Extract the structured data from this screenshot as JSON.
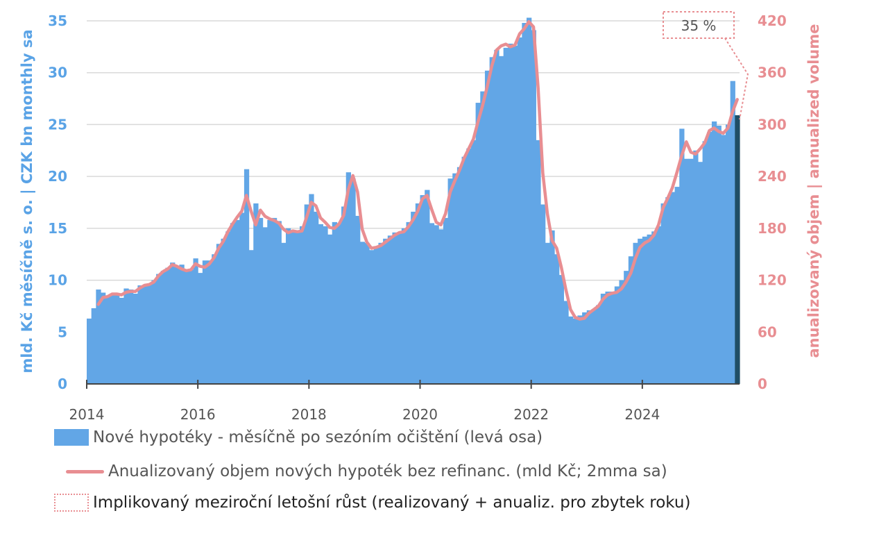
{
  "chart_data": {
    "type": "bar+line",
    "title": "",
    "ylabel_left": "mld. Kč měsíčně s. o. | CZK bn monthly sa",
    "ylabel_right": "anualizovaný objem | annualized volume",
    "ylim_left": [
      0,
      35
    ],
    "ylim_right": [
      0,
      420
    ],
    "yticks_left": [
      "0",
      "5",
      "10",
      "15",
      "20",
      "25",
      "30",
      "35"
    ],
    "yticks_right": [
      "0",
      "60",
      "120",
      "180",
      "240",
      "300",
      "360",
      "420"
    ],
    "xticks": [
      "2014",
      "2016",
      "2018",
      "2020",
      "2022",
      "2024"
    ],
    "grid": true,
    "legend_position": "bottom",
    "colors": {
      "bars": "#62a6e6",
      "last_bar": "#1f4e66",
      "line": "#e88e92",
      "annotation": "#e88e92"
    },
    "bar_series": {
      "name": "Nové hypotéky - měsíčně po sezóním očištění (levá osa)",
      "axis": "left",
      "start": "2014-01",
      "frequency": "monthly",
      "values": [
        6.3,
        7.3,
        9.1,
        8.8,
        8.4,
        8.7,
        8.7,
        8.3,
        9.2,
        9.1,
        8.7,
        9.5,
        9.4,
        9.6,
        10.0,
        10.6,
        10.9,
        11.2,
        11.7,
        11.4,
        11.5,
        11.0,
        11.0,
        12.1,
        10.7,
        11.9,
        11.9,
        12.5,
        13.5,
        14.0,
        14.7,
        15.5,
        15.8,
        16.5,
        20.7,
        12.9,
        17.4,
        16.0,
        15.1,
        15.8,
        16.0,
        15.7,
        13.6,
        15.0,
        14.8,
        14.8,
        15.2,
        17.3,
        18.3,
        16.6,
        15.4,
        15.2,
        14.4,
        15.6,
        15.5,
        17.1,
        20.4,
        19.8,
        16.2,
        13.7,
        13.6,
        12.9,
        13.1,
        13.6,
        14.0,
        14.3,
        14.6,
        14.5,
        15.0,
        15.6,
        16.6,
        17.4,
        18.2,
        18.7,
        15.5,
        15.3,
        14.9,
        16.0,
        19.8,
        20.3,
        20.9,
        21.9,
        22.7,
        23.5,
        27.1,
        28.2,
        30.2,
        31.5,
        32.2,
        31.6,
        32.4,
        32.8,
        32.6,
        33.4,
        34.8,
        35.3,
        34.1,
        23.5,
        17.3,
        13.6,
        14.8,
        12.5,
        10.5,
        8.0,
        6.5,
        6.3,
        6.6,
        6.9,
        7.1,
        7.2,
        7.6,
        8.7,
        8.9,
        8.9,
        9.4,
        10.0,
        10.9,
        12.3,
        13.6,
        14.0,
        14.2,
        14.4,
        14.7,
        15.2,
        17.4,
        18.0,
        18.5,
        19.0,
        24.6,
        21.7,
        21.7,
        22.5,
        21.4,
        23.4,
        24.3,
        25.3,
        24.9,
        24.0,
        25.0,
        29.2,
        25.9
      ]
    },
    "line_series": {
      "name": "Anualizovaný objem nových hypoték bez refinanc. (mld Kč; 2mma sa)",
      "axis": "right",
      "start": "2014-01",
      "frequency": "monthly",
      "values": [
        null,
        null,
        92,
        100,
        101,
        104,
        104,
        103,
        106,
        107,
        107,
        111,
        114,
        115,
        118,
        125,
        130,
        133,
        138,
        136,
        133,
        131,
        132,
        139,
        136,
        135,
        139,
        146,
        157,
        165,
        176,
        185,
        193,
        200,
        218,
        200,
        184,
        201,
        194,
        191,
        189,
        186,
        179,
        175,
        177,
        176,
        177,
        193,
        210,
        206,
        192,
        187,
        181,
        180,
        185,
        195,
        225,
        241,
        222,
        179,
        164,
        157,
        158,
        160,
        164,
        168,
        172,
        175,
        176,
        182,
        190,
        200,
        214,
        218,
        202,
        187,
        184,
        197,
        222,
        235,
        247,
        261,
        272,
        283,
        303,
        322,
        344,
        368,
        386,
        391,
        393,
        390,
        392,
        405,
        411,
        419,
        413,
        342,
        244,
        197,
        166,
        157,
        135,
        109,
        86,
        77,
        75,
        76,
        82,
        86,
        90,
        98,
        103,
        105,
        106,
        110,
        118,
        128,
        145,
        158,
        163,
        166,
        172,
        184,
        204,
        215,
        227,
        245,
        264,
        280,
        268,
        266,
        272,
        279,
        293,
        296,
        292,
        290,
        296,
        315,
        329
      ]
    },
    "annotation": {
      "label": "35 %",
      "legend": "Implikovaný meziroční letošní růst (realizovaný + anualiz. pro zbytek roku)"
    }
  }
}
